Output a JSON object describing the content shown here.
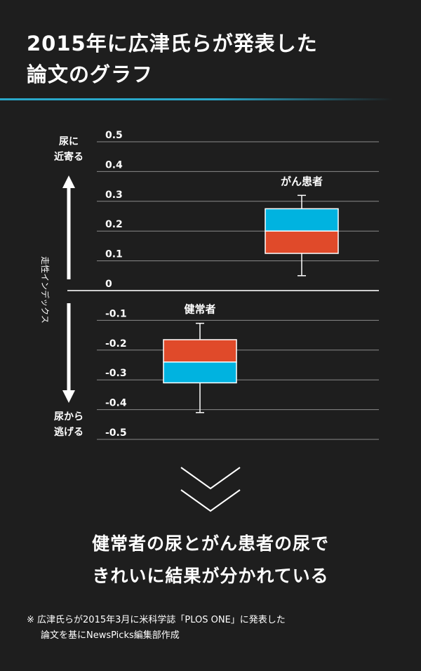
{
  "header": {
    "title_line1": "2015年に広津氏らが発表した",
    "title_line2": "論文のグラフ"
  },
  "chart_data": {
    "type": "boxplot",
    "ylabel": "走性インデックス",
    "ylim": [
      -0.5,
      0.5
    ],
    "yticks": [
      "0.5",
      "0.4",
      "0.3",
      "0.2",
      "0.1",
      "0",
      "-0.1",
      "-0.2",
      "-0.3",
      "-0.4",
      "-0.5"
    ],
    "ytick_values": [
      0.5,
      0.4,
      0.3,
      0.2,
      0.1,
      0,
      -0.1,
      -0.2,
      -0.3,
      -0.4,
      -0.5
    ],
    "top_direction_label": [
      "尿に",
      "近寄る"
    ],
    "bottom_direction_label": [
      "尿から",
      "逃げる"
    ],
    "series": [
      {
        "name": "健常者",
        "whisker_low": -0.41,
        "q1": -0.31,
        "median": -0.24,
        "q3": -0.165,
        "whisker_high": -0.11,
        "upper_color": "#e04a2a",
        "lower_color": "#00b3e0"
      },
      {
        "name": "がん患者",
        "whisker_low": 0.05,
        "q1": 0.125,
        "median": 0.2,
        "q3": 0.275,
        "whisker_high": 0.32,
        "upper_color": "#00b3e0",
        "lower_color": "#e04a2a"
      }
    ]
  },
  "conclusion": {
    "line1": "健常者の尿とがん患者の尿で",
    "line2": "きれいに結果が分かれている"
  },
  "footnote": {
    "line1": "※ 広津氏らが2015年3月に米科学誌「PLOS ONE」に発表した",
    "line2": "論文を基にNewsPicks編集部作成"
  },
  "colors": {
    "background": "#1e1e1e",
    "accent": "#2aa7c9",
    "grid": "#8a8a8a",
    "red": "#e04a2a",
    "blue": "#00b3e0"
  }
}
